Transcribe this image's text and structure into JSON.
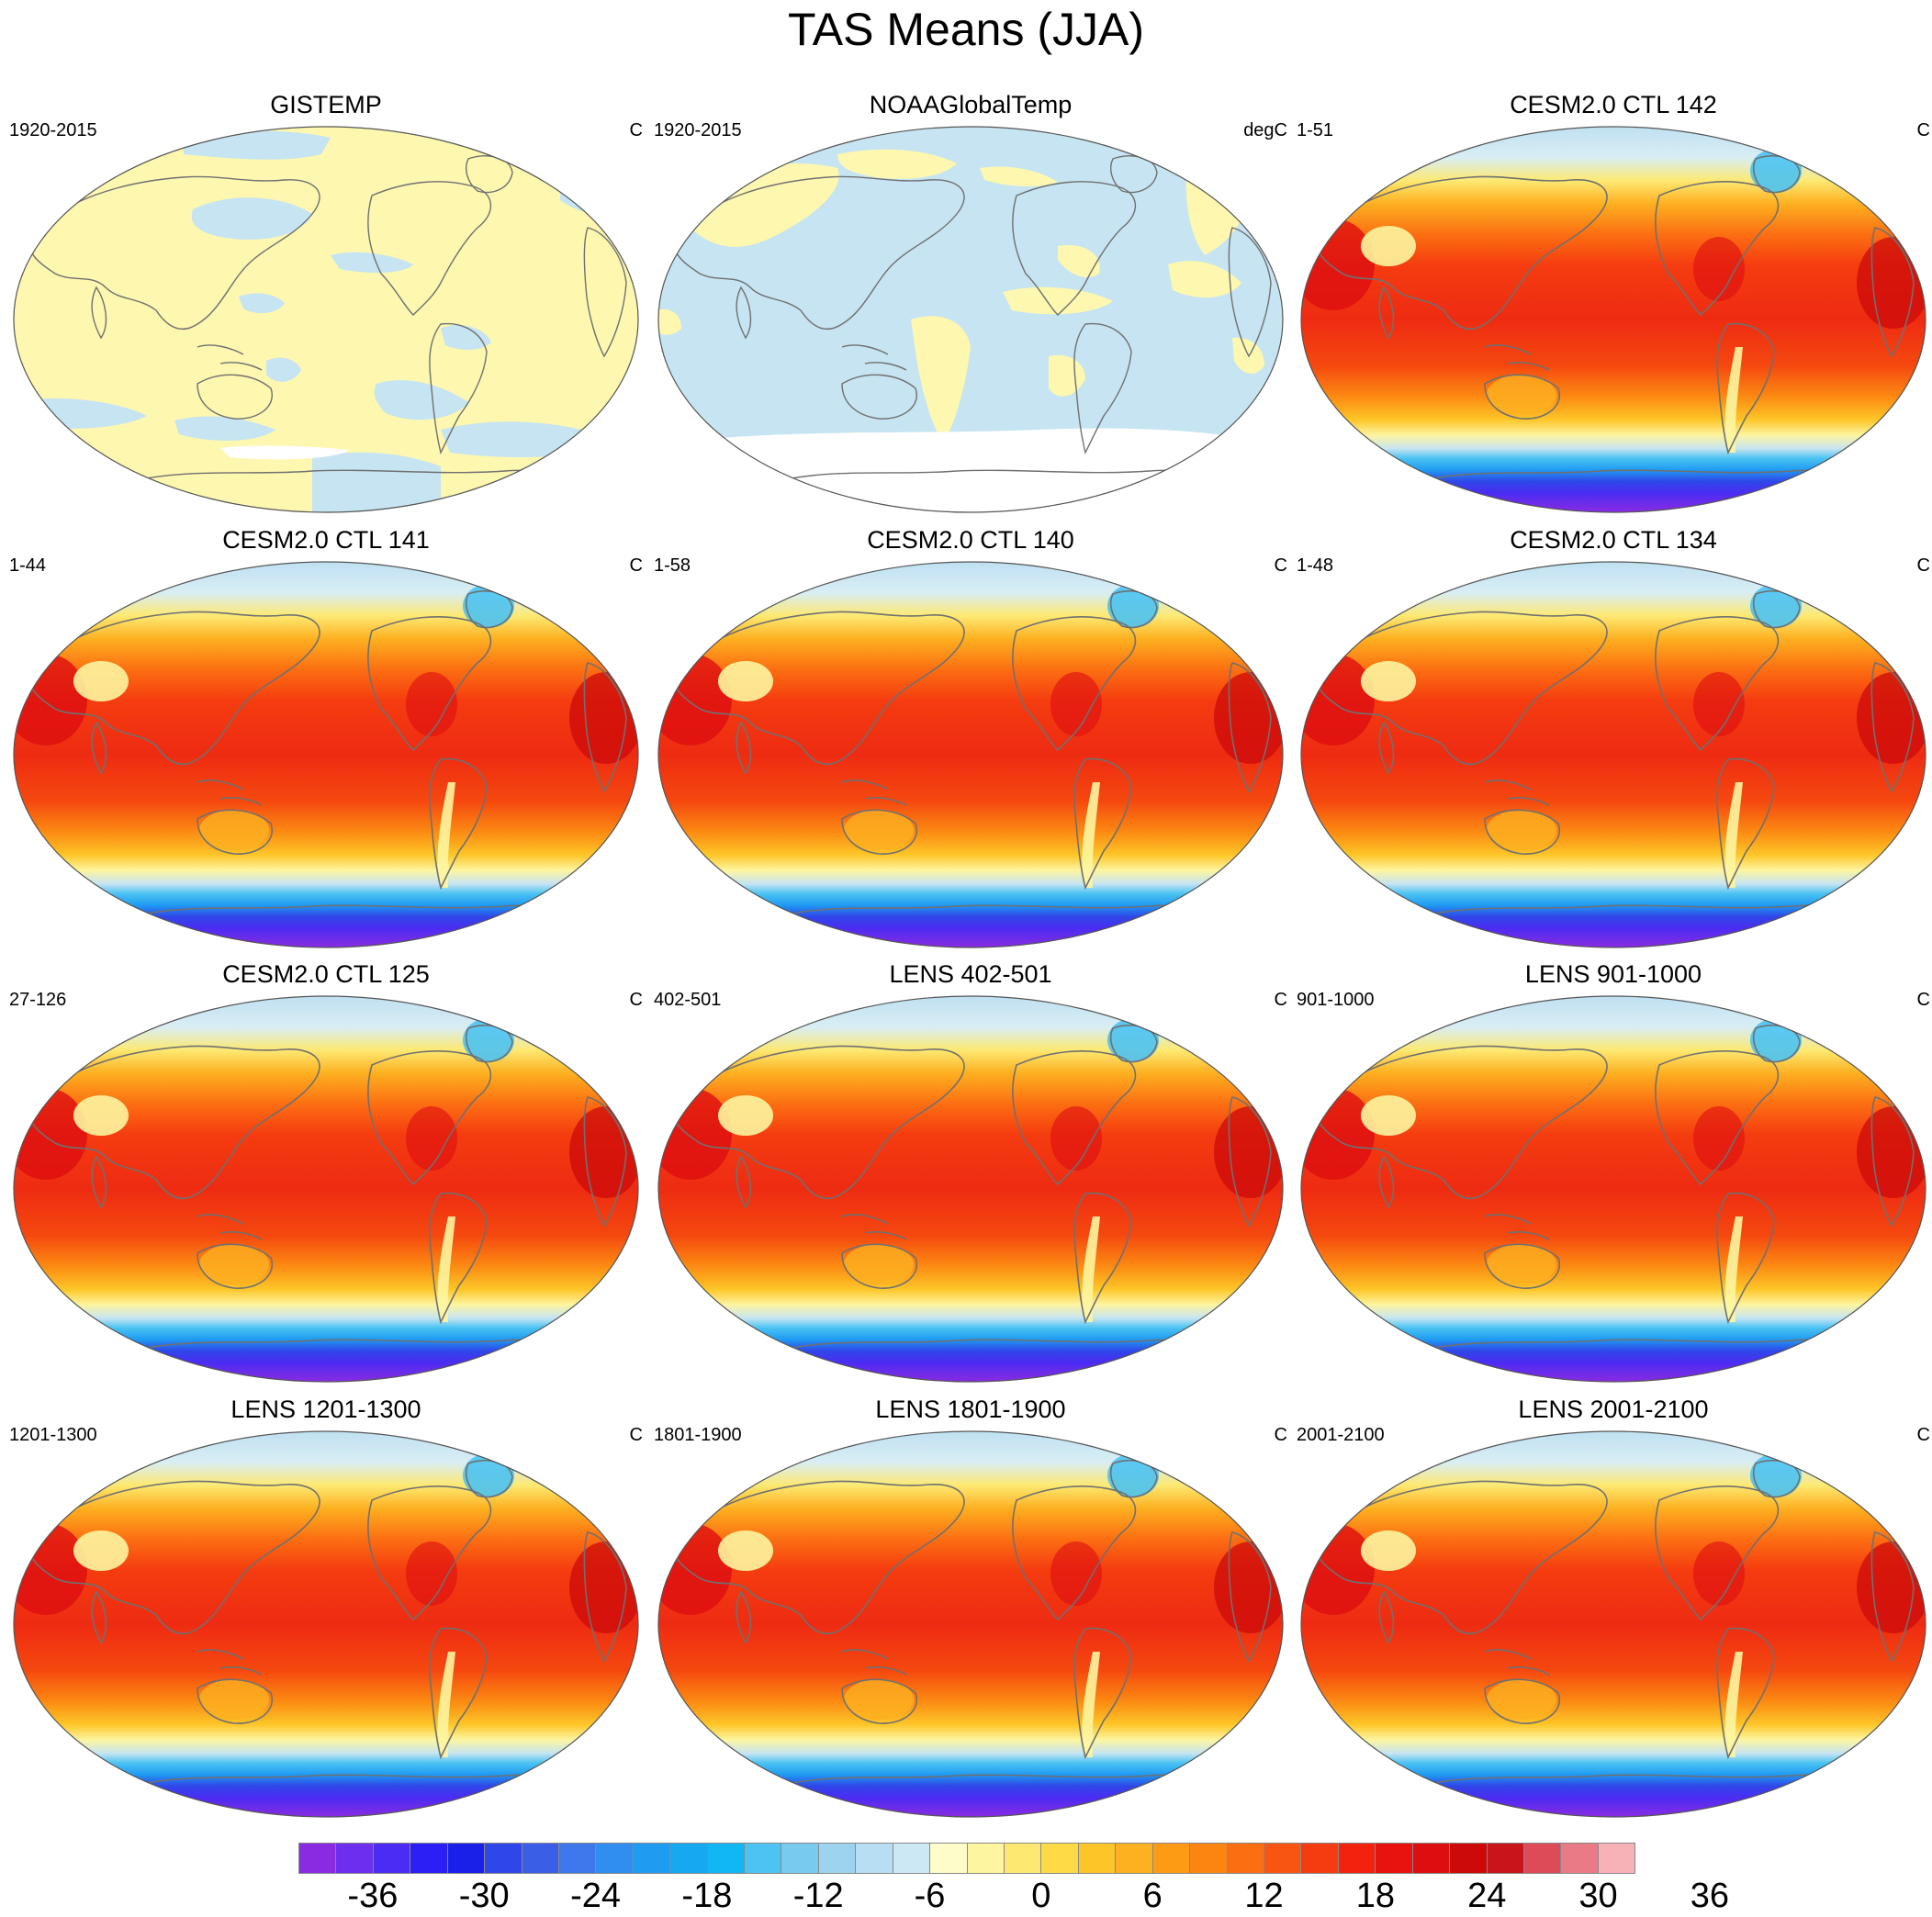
{
  "title": "TAS Means (JJA)",
  "colors": {
    "ocean_light_blue": "#c6e4f2",
    "land_yellow": "#fdf7b0",
    "model_red": "#ee2b12",
    "coast": "#707070"
  },
  "panels": [
    {
      "title": "GISTEMP",
      "left": "1920-2015",
      "right": "C",
      "style": "obs_gistemp"
    },
    {
      "title": "NOAAGlobalTemp",
      "left": "1920-2015",
      "right": "degC",
      "style": "obs_noaa"
    },
    {
      "title": "CESM2.0 CTL 142",
      "left": "1-51",
      "right": "C",
      "style": "model"
    },
    {
      "title": "CESM2.0 CTL 141",
      "left": "1-44",
      "right": "C",
      "style": "model"
    },
    {
      "title": "CESM2.0 CTL 140",
      "left": "1-58",
      "right": "C",
      "style": "model"
    },
    {
      "title": "CESM2.0 CTL 134",
      "left": "1-48",
      "right": "C",
      "style": "model"
    },
    {
      "title": "CESM2.0 CTL 125",
      "left": "27-126",
      "right": "C",
      "style": "model"
    },
    {
      "title": "LENS 402-501",
      "left": "402-501",
      "right": "C",
      "style": "model"
    },
    {
      "title": "LENS 901-1000",
      "left": "901-1000",
      "right": "C",
      "style": "model"
    },
    {
      "title": "LENS 1201-1300",
      "left": "1201-1300",
      "right": "C",
      "style": "model"
    },
    {
      "title": "LENS 1801-1900",
      "left": "1801-1900",
      "right": "C",
      "style": "model"
    },
    {
      "title": "LENS 2001-2100",
      "left": "2001-2100",
      "right": "C",
      "style": "model"
    }
  ],
  "colorbar": {
    "colors": [
      "#8a2be2",
      "#6e2ef0",
      "#4b2cf2",
      "#2b1ff5",
      "#1a20e8",
      "#2f47e8",
      "#3a5fe6",
      "#3f78ea",
      "#2f8ef0",
      "#1f9bf2",
      "#16a8f0",
      "#10b7f2",
      "#4cc3f2",
      "#78cbee",
      "#9dd3ef",
      "#b7def2",
      "#cbe8f4",
      "#fefcc8",
      "#fdf5a0",
      "#fde972",
      "#fedb46",
      "#fdc628",
      "#fdb020",
      "#fd9b14",
      "#fc8512",
      "#fc6e12",
      "#f95512",
      "#f53c10",
      "#f2220e",
      "#e8120e",
      "#dd0e10",
      "#cc0a0a",
      "#c9141c",
      "#dd4a58",
      "#ea7a86",
      "#f7b2b8"
    ],
    "labels": [
      "-36",
      "-30",
      "-24",
      "-18",
      "-12",
      "-6",
      "0",
      "6",
      "12",
      "18",
      "24",
      "30",
      "36"
    ]
  }
}
